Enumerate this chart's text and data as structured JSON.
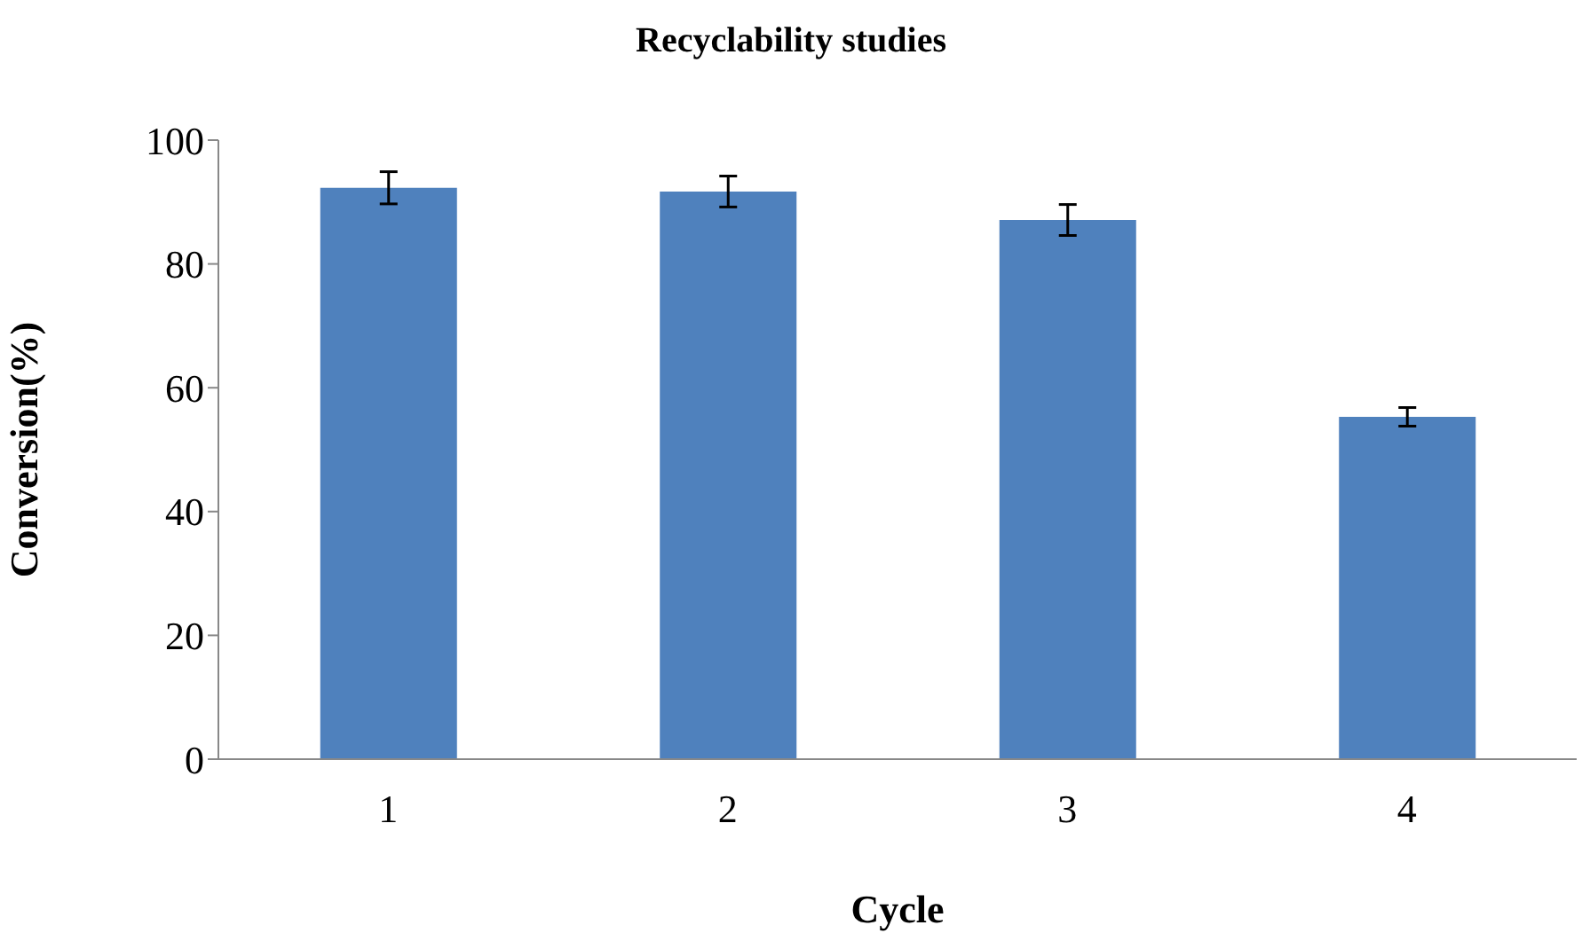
{
  "chart_data": {
    "type": "bar",
    "title": "Recyclability studies",
    "xlabel": "Cycle",
    "ylabel": "Conversion(%)",
    "categories": [
      "1",
      "2",
      "3",
      "4"
    ],
    "values": [
      92.3,
      91.7,
      87.1,
      55.3
    ],
    "errors": [
      2.6,
      2.5,
      2.5,
      1.5
    ],
    "color": "#4f81bd",
    "ylim": [
      0,
      100
    ],
    "yticks": [
      0,
      20,
      40,
      60,
      80,
      100
    ],
    "grid": false,
    "legend": false
  }
}
